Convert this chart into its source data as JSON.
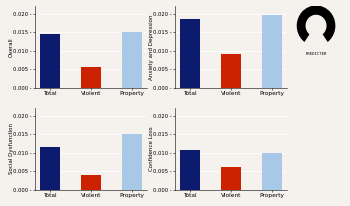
{
  "subplots": [
    {
      "title": "Overall",
      "values": {
        "Total": 0.0145,
        "Violent": 0.0055,
        "Property": 0.015
      }
    },
    {
      "title": "Anxiety and Depression",
      "values": {
        "Total": 0.0185,
        "Violent": 0.009,
        "Property": 0.0195
      }
    },
    {
      "title": "Social Dysfunction",
      "values": {
        "Total": 0.0115,
        "Violent": 0.004,
        "Property": 0.015
      }
    },
    {
      "title": "Confidence Loss",
      "values": {
        "Total": 0.0108,
        "Violent": 0.0062,
        "Property": 0.01
      }
    }
  ],
  "categories": [
    "Total",
    "Violent",
    "Property"
  ],
  "bar_colors": [
    "#0d1b6e",
    "#cc2200",
    "#a8c8e8"
  ],
  "ylim": [
    0,
    0.022
  ],
  "yticks": [
    0.0,
    0.005,
    0.01,
    0.015,
    0.02
  ],
  "ylabel_fontsize": 4.0,
  "tick_fontsize": 3.8,
  "xlabel_fontsize": 4.2,
  "background_color": "#f5f2ee"
}
